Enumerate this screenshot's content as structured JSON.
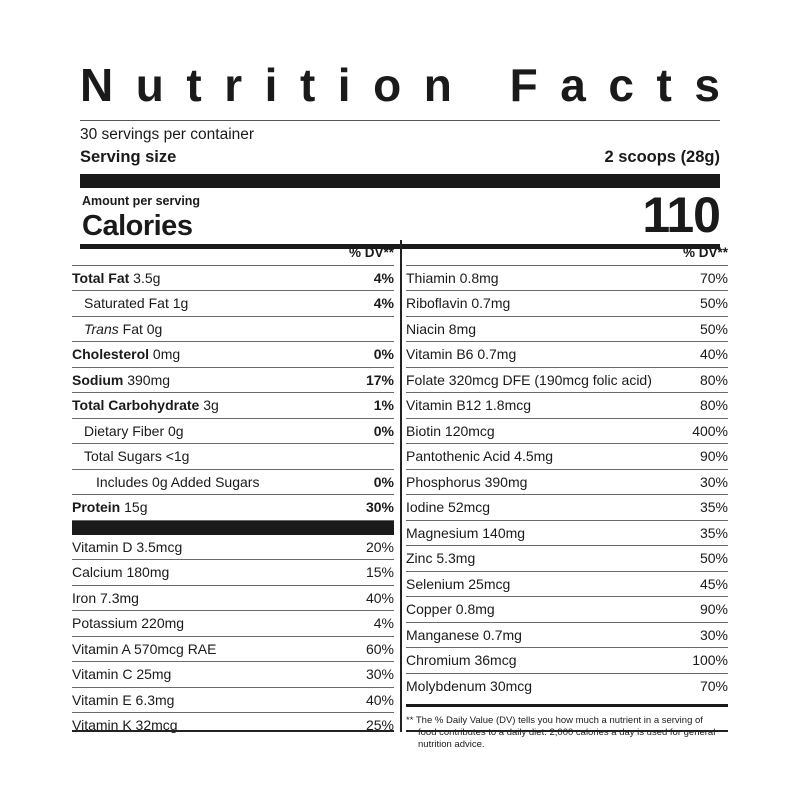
{
  "title_letters": [
    "N",
    "u",
    "t",
    "r",
    "i",
    "t",
    "i",
    "o",
    "n",
    " ",
    "F",
    "a",
    "c",
    "t",
    "s"
  ],
  "title": "Nutrition Facts",
  "servings_per_container": "30 servings per container",
  "serving_size_label": "Serving size",
  "serving_size_value": "2 scoops (28g)",
  "amount_per_serving": "Amount per serving",
  "calories_label": "Calories",
  "calories_value": "110",
  "dv_header": "% DV**",
  "left_rows": [
    {
      "bold": "Total Fat",
      "rest": " 3.5g",
      "dv": "4%",
      "dv_bold": true,
      "indent": 0
    },
    {
      "bold": "",
      "rest": "Saturated Fat 1g",
      "dv": "4%",
      "dv_bold": true,
      "indent": 1
    },
    {
      "bold": "",
      "italic": "Trans",
      "rest": " Fat 0g",
      "dv": "",
      "dv_bold": true,
      "indent": 1
    },
    {
      "bold": "Cholesterol",
      "rest": " 0mg",
      "dv": "0%",
      "dv_bold": true,
      "indent": 0
    },
    {
      "bold": "Sodium",
      "rest": " 390mg",
      "dv": "17%",
      "dv_bold": true,
      "indent": 0
    },
    {
      "bold": "Total Carbohydrate",
      "rest": " 3g",
      "dv": "1%",
      "dv_bold": true,
      "indent": 0
    },
    {
      "bold": "",
      "rest": "Dietary Fiber 0g",
      "dv": "0%",
      "dv_bold": true,
      "indent": 1
    },
    {
      "bold": "",
      "rest": "Total Sugars <1g",
      "dv": "",
      "dv_bold": true,
      "indent": 1
    },
    {
      "bold": "",
      "rest": "Includes 0g Added Sugars",
      "dv": "0%",
      "dv_bold": true,
      "indent": 2
    },
    {
      "bold": "Protein",
      "rest": " 15g",
      "dv": "30%",
      "dv_bold": true,
      "indent": 0
    }
  ],
  "left_vitamins": [
    {
      "name": "Vitamin D 3.5mcg",
      "dv": "20%"
    },
    {
      "name": "Calcium 180mg",
      "dv": "15%"
    },
    {
      "name": "Iron 7.3mg",
      "dv": "40%"
    },
    {
      "name": "Potassium 220mg",
      "dv": "4%"
    },
    {
      "name": "Vitamin A 570mcg RAE",
      "dv": "60%"
    },
    {
      "name": "Vitamin C 25mg",
      "dv": "30%"
    },
    {
      "name": "Vitamin E 6.3mg",
      "dv": "40%"
    },
    {
      "name": "Vitamin K 32mcg",
      "dv": "25%"
    }
  ],
  "right_rows": [
    {
      "name": "Thiamin 0.8mg",
      "dv": "70%"
    },
    {
      "name": "Riboflavin 0.7mg",
      "dv": "50%"
    },
    {
      "name": "Niacin 8mg",
      "dv": "50%"
    },
    {
      "name": "Vitamin B6 0.7mg",
      "dv": "40%"
    },
    {
      "name": "Folate 320mcg DFE (190mcg folic acid)",
      "dv": "80%"
    },
    {
      "name": "Vitamin B12 1.8mcg",
      "dv": "80%"
    },
    {
      "name": "Biotin 120mcg",
      "dv": "400%"
    },
    {
      "name": "Pantothenic Acid 4.5mg",
      "dv": "90%"
    },
    {
      "name": "Phosphorus 390mg",
      "dv": "30%"
    },
    {
      "name": "Iodine 52mcg",
      "dv": "35%"
    },
    {
      "name": "Magnesium 140mg",
      "dv": "35%"
    },
    {
      "name": "Zinc 5.3mg",
      "dv": "50%"
    },
    {
      "name": "Selenium 25mcg",
      "dv": "45%"
    },
    {
      "name": "Copper 0.8mg",
      "dv": "90%"
    },
    {
      "name": "Manganese 0.7mg",
      "dv": "30%"
    },
    {
      "name": "Chromium 36mcg",
      "dv": "100%"
    },
    {
      "name": "Molybdenum 30mcg",
      "dv": "70%"
    }
  ],
  "footnote_line1": "** The % Daily Value (DV) tells you how much a nutrient in a serving of",
  "footnote_line2": "food contributes to a daily diet. 2,000 calories a day is used for general",
  "footnote_line3": "nutrition advice."
}
